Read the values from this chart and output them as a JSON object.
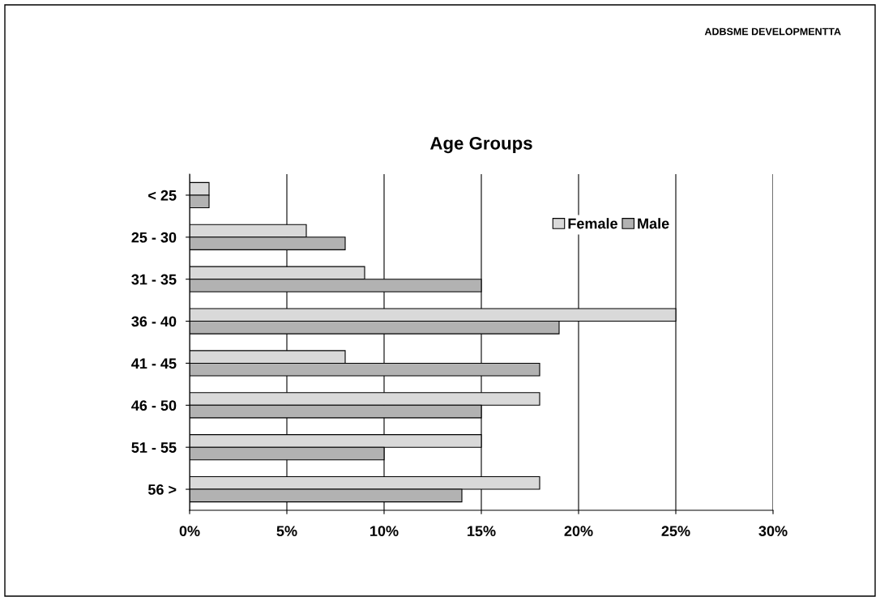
{
  "chart_data": {
    "type": "bar",
    "orientation": "horizontal",
    "title": "Age Groups",
    "annotations": [
      "ADBSME DEVELOPMENTTA"
    ],
    "categories": [
      "< 25",
      "25 - 30",
      "31 - 35",
      "36 - 40",
      "41 - 45",
      "46 - 50",
      "51 - 55",
      "56 >"
    ],
    "series": [
      {
        "name": "Female",
        "color": "#d9d9d9",
        "values": [
          1,
          6,
          9,
          25,
          8,
          18,
          15,
          18
        ]
      },
      {
        "name": "Male",
        "color": "#b2b2b2",
        "values": [
          1,
          8,
          15,
          19,
          18,
          15,
          10,
          14
        ]
      }
    ],
    "xlim": [
      0,
      30
    ],
    "xticks": [
      {
        "value": 0,
        "label": "0%"
      },
      {
        "value": 5,
        "label": "5%"
      },
      {
        "value": 10,
        "label": "10%"
      },
      {
        "value": 15,
        "label": "15%"
      },
      {
        "value": 20,
        "label": "20%"
      },
      {
        "value": 25,
        "label": "25%"
      },
      {
        "value": 30,
        "label": "30%"
      }
    ],
    "grid": "x",
    "legend": "top right"
  }
}
